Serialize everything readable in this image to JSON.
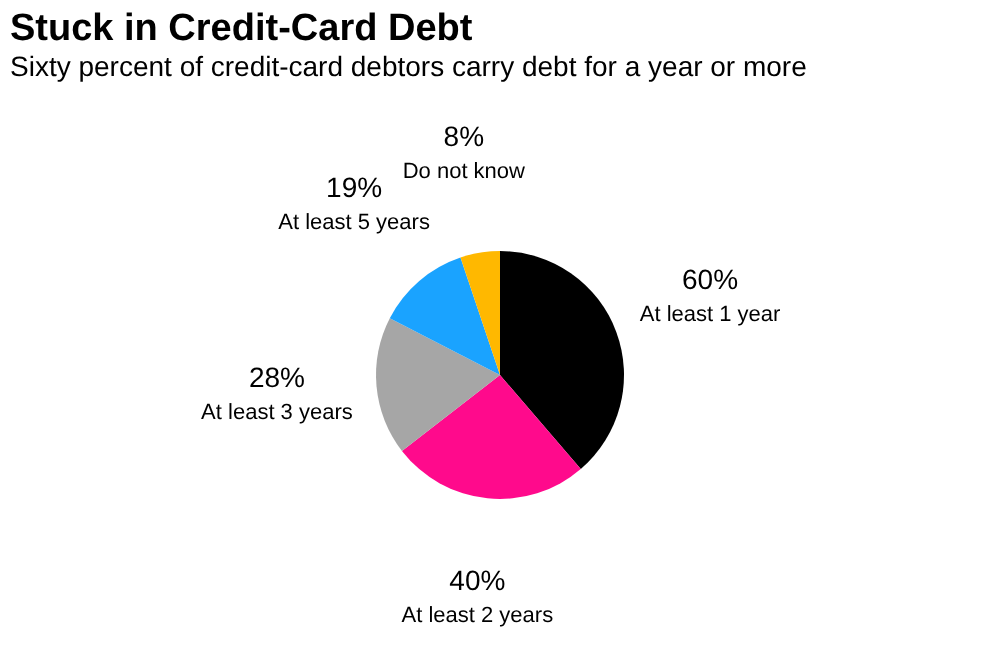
{
  "chart_data": {
    "type": "pie",
    "title": "Stuck in Credit-Card Debt",
    "subtitle": "Sixty percent of credit-card debtors carry debt for a year or more",
    "categories": [
      "At least 1 year",
      "At least 2 years",
      "At least 3 years",
      "At least 5 years",
      "Do not know"
    ],
    "values": [
      60,
      40,
      28,
      19,
      8
    ],
    "value_labels": [
      "60%",
      "40%",
      "28%",
      "19%",
      "8%"
    ],
    "colors": [
      "#000000",
      "#ff0a8c",
      "#a6a6a6",
      "#1aa3ff",
      "#ffb800"
    ]
  }
}
